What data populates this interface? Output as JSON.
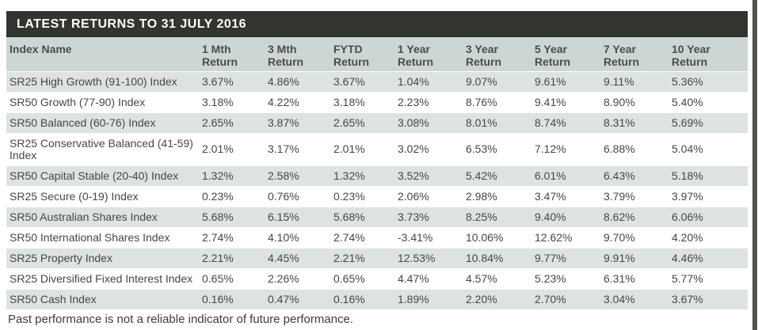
{
  "panel": {
    "title": "LATEST RETURNS TO 31 JULY 2016",
    "footer": "Past performance is not a reliable indicator of future performance."
  },
  "table": {
    "columns": [
      "Index Name",
      "1 Mth\nReturn",
      "3 Mth\nReturn",
      "FYTD\nReturn",
      "1 Year\nReturn",
      "3 Year\nReturn",
      "5 Year\nReturn",
      "7 Year\nReturn",
      "10 Year\nReturn"
    ],
    "rows": [
      {
        "name": "SR25 High Growth (91-100) Index",
        "values": [
          "3.67%",
          "4.86%",
          "3.67%",
          "1.04%",
          "9.07%",
          "9.61%",
          "9.11%",
          "5.36%"
        ]
      },
      {
        "name": "SR50 Growth (77-90) Index",
        "values": [
          "3.18%",
          "4.22%",
          "3.18%",
          "2.23%",
          "8.76%",
          "9.41%",
          "8.90%",
          "5.40%"
        ]
      },
      {
        "name": "SR50 Balanced (60-76) Index",
        "values": [
          "2.65%",
          "3.87%",
          "2.65%",
          "3.08%",
          "8.01%",
          "8.74%",
          "8.31%",
          "5.69%"
        ]
      },
      {
        "name": "SR25 Conservative Balanced (41-59) Index",
        "values": [
          "2.01%",
          "3.17%",
          "2.01%",
          "3.02%",
          "6.53%",
          "7.12%",
          "6.88%",
          "5.04%"
        ]
      },
      {
        "name": "SR50 Capital Stable (20-40) Index",
        "values": [
          "1.32%",
          "2.58%",
          "1.32%",
          "3.52%",
          "5.42%",
          "6.01%",
          "6.43%",
          "5.18%"
        ]
      },
      {
        "name": "SR25 Secure (0-19) Index",
        "values": [
          "0.23%",
          "0.76%",
          "0.23%",
          "2.06%",
          "2.98%",
          "3.47%",
          "3.79%",
          "3.97%"
        ]
      },
      {
        "name": "SR50 Australian Shares Index",
        "values": [
          "5.68%",
          "6.15%",
          "5.68%",
          "3.73%",
          "8.25%",
          "9.40%",
          "8.62%",
          "6.06%"
        ]
      },
      {
        "name": "SR50 International Shares Index",
        "values": [
          "2.74%",
          "4.10%",
          "2.74%",
          "-3.41%",
          "10.06%",
          "12.62%",
          "9.70%",
          "4.20%"
        ]
      },
      {
        "name": "SR25 Property Index",
        "values": [
          "2.21%",
          "4.45%",
          "2.21%",
          "12.53%",
          "10.84%",
          "9.77%",
          "9.91%",
          "4.46%"
        ]
      },
      {
        "name": "SR25 Diversified Fixed Interest Index",
        "values": [
          "0.65%",
          "2.26%",
          "0.65%",
          "4.47%",
          "4.57%",
          "5.23%",
          "6.31%",
          "5.77%"
        ]
      },
      {
        "name": "SR50 Cash Index",
        "values": [
          "0.16%",
          "0.47%",
          "0.16%",
          "1.89%",
          "2.20%",
          "2.70%",
          "3.04%",
          "3.67%"
        ]
      }
    ]
  },
  "colors": {
    "title_bar_bg": "#32352f",
    "title_text": "#ffffff",
    "header_bg": "#ccd6d5",
    "row_alt_bg": "#dde3e2",
    "row_bg": "#ffffff",
    "cell_text": "#474747",
    "window_edge": "#50544b"
  }
}
